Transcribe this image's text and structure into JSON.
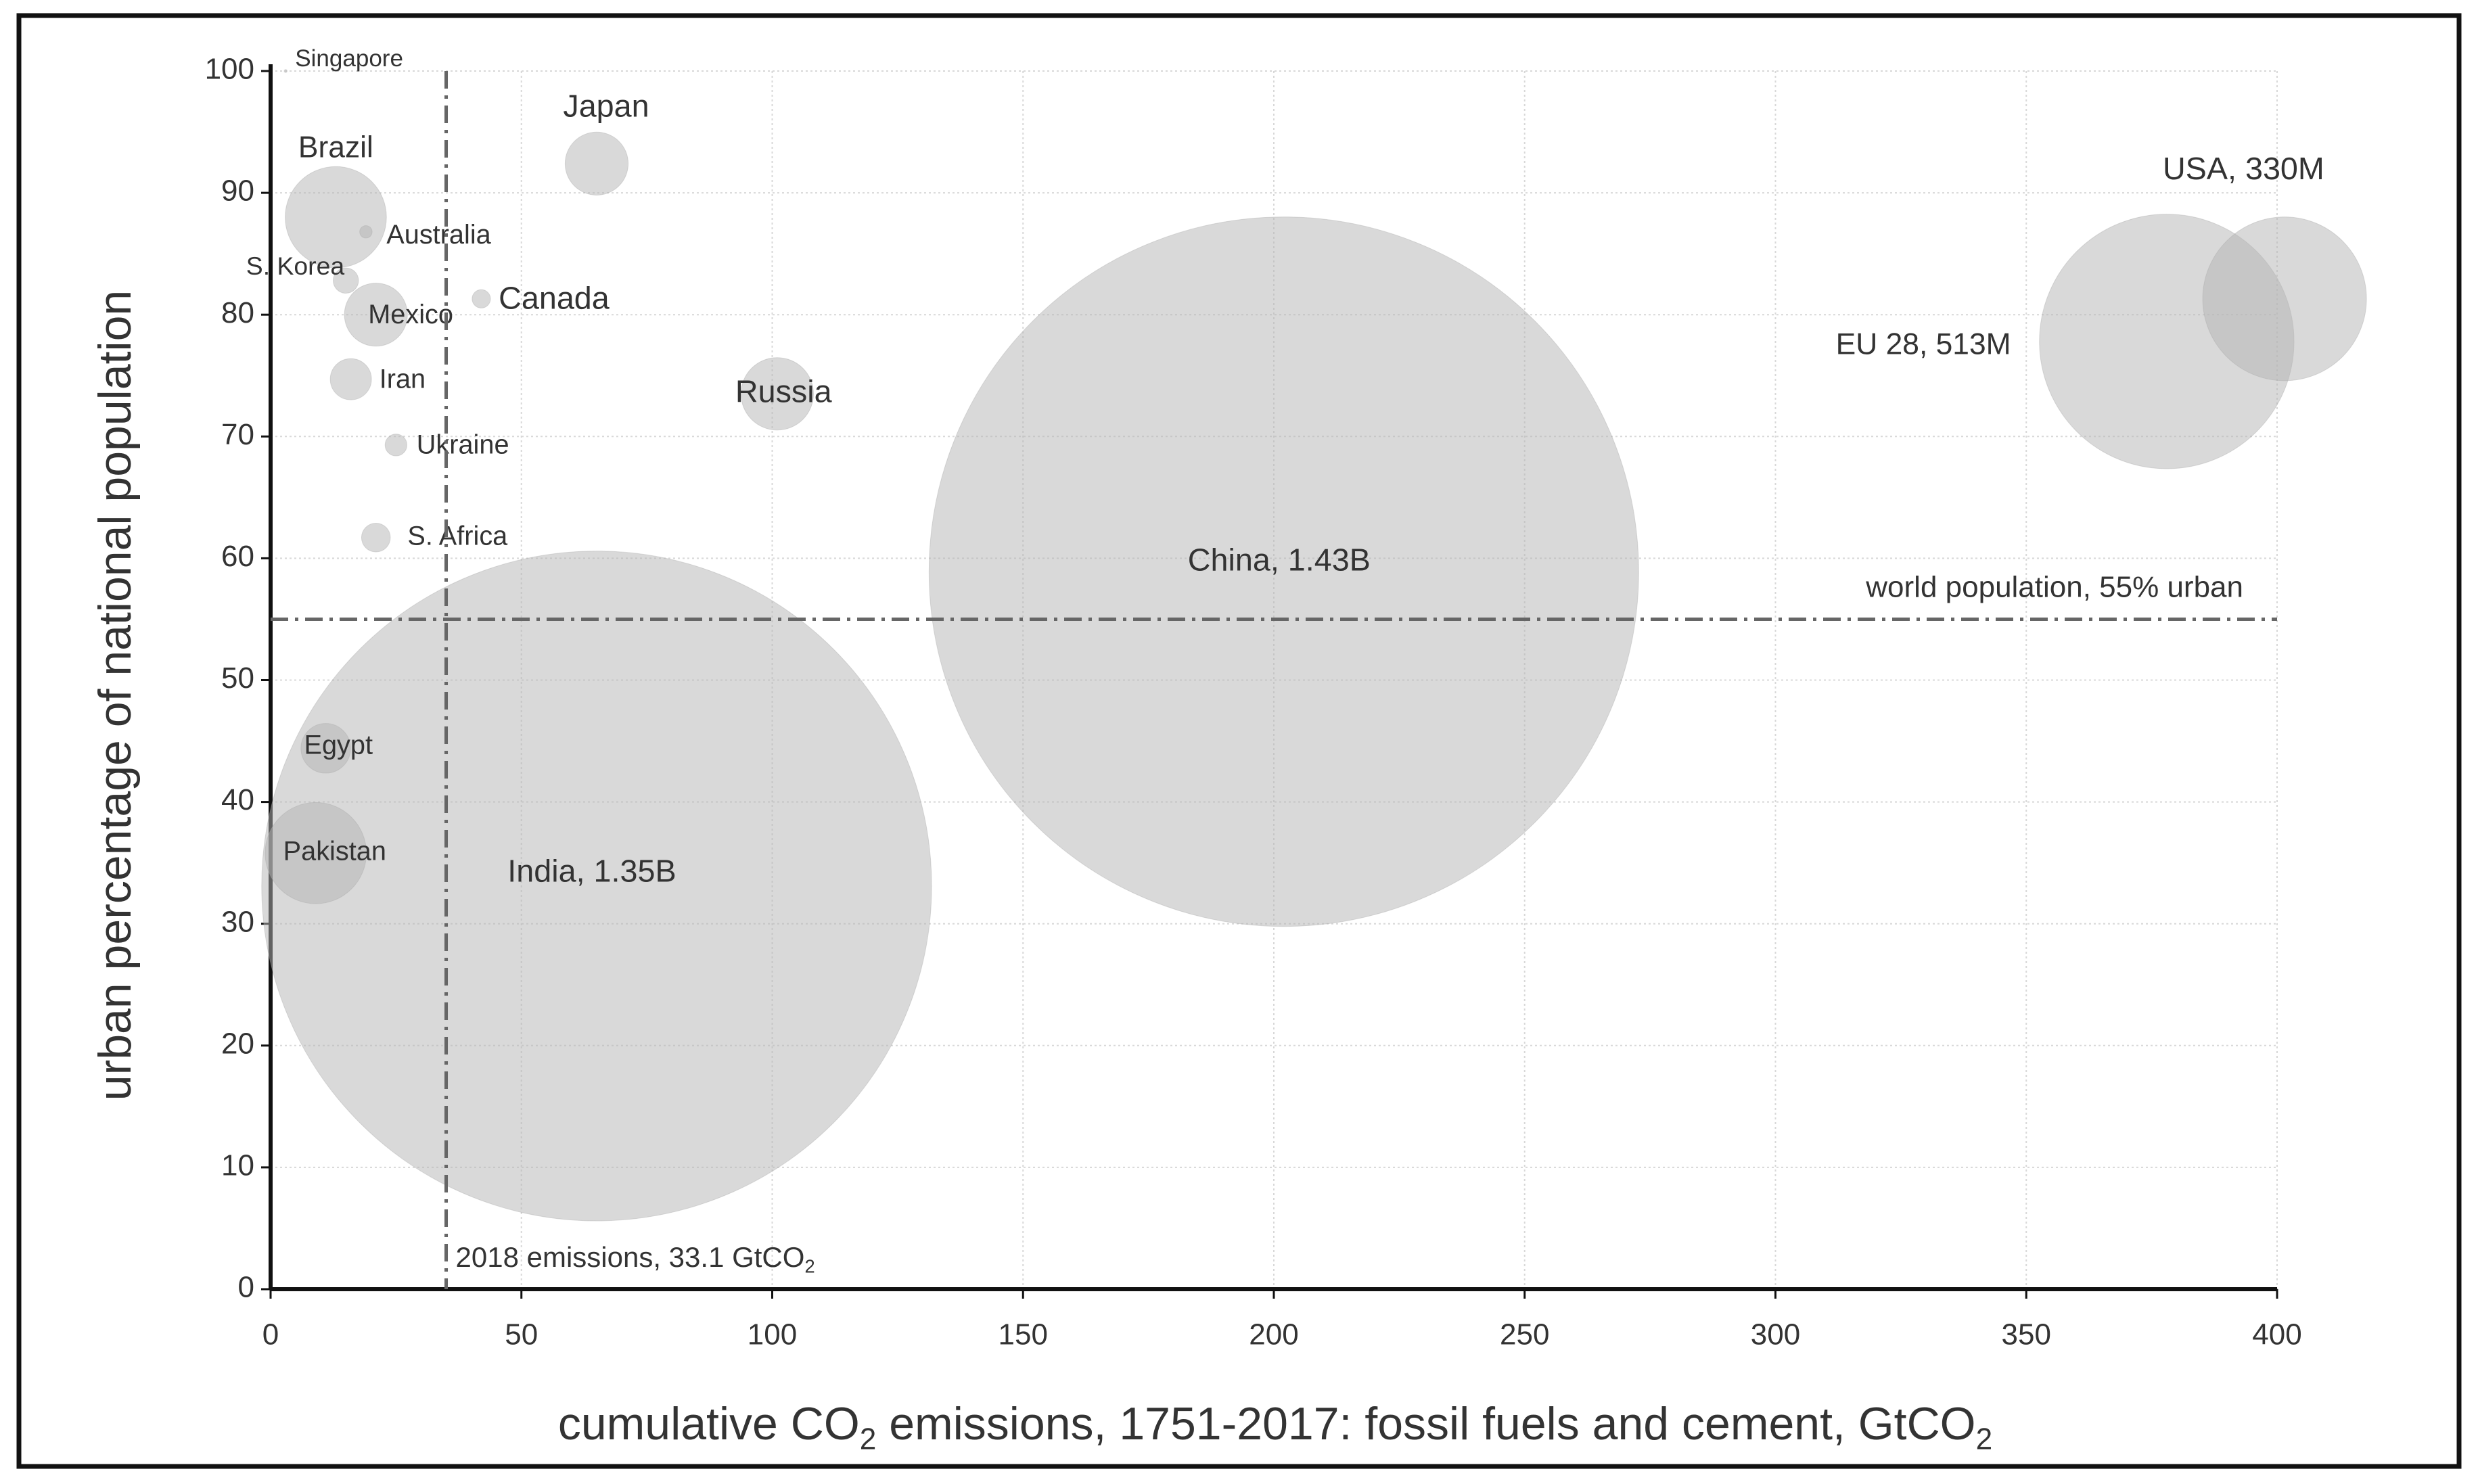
{
  "chart_data": {
    "type": "bubble",
    "xlabel": [
      "cumulative CO",
      "2",
      " emissions, 1751-2017: fossil fuels and cement, GtCO",
      "2"
    ],
    "ylabel": "urban percentage of national population",
    "xlim": [
      0,
      400
    ],
    "xticks": [
      0,
      50,
      100,
      150,
      200,
      250,
      300,
      350,
      400
    ],
    "ylim": [
      0,
      100
    ],
    "yticks": [
      0,
      10,
      20,
      30,
      40,
      50,
      60,
      70,
      80,
      90,
      100
    ],
    "grid": true,
    "color": "#b4b4b4",
    "points": [
      {
        "label": "Singapore",
        "x": 3,
        "y": 100,
        "size": 6
      },
      {
        "label": "Brazil",
        "x": 13,
        "y": 88,
        "size": 204
      },
      {
        "label": "Australia",
        "x": 19,
        "y": 86.8,
        "size": 25
      },
      {
        "label": "S. Korea",
        "x": 15,
        "y": 82.8,
        "size": 51
      },
      {
        "label": "Mexico",
        "x": 21,
        "y": 80,
        "size": 127
      },
      {
        "label": "Canada",
        "x": 42,
        "y": 81.3,
        "size": 37
      },
      {
        "label": "Iran",
        "x": 16,
        "y": 74.7,
        "size": 83
      },
      {
        "label": "Ukraine",
        "x": 25,
        "y": 69.3,
        "size": 44
      },
      {
        "label": "S. Africa",
        "x": 21,
        "y": 61.7,
        "size": 58
      },
      {
        "label": "Japan",
        "x": 65,
        "y": 92.4,
        "size": 127
      },
      {
        "label": "Russia",
        "x": 101,
        "y": 73.5,
        "size": 146
      },
      {
        "label": "China, 1.43B",
        "x": 202,
        "y": 58.9,
        "size": 1430
      },
      {
        "label": "India, 1.35B",
        "x": 65,
        "y": 33.1,
        "size": 1350
      },
      {
        "label": "Egypt",
        "x": 11,
        "y": 44.4,
        "size": 100
      },
      {
        "label": "Pakistan",
        "x": 9,
        "y": 35.8,
        "size": 204
      },
      {
        "label": "EU 28, 513M",
        "x": 378,
        "y": 77.8,
        "size": 513
      },
      {
        "label": "USA, 330M",
        "x": 401.5,
        "y": 81.3,
        "size": 330
      }
    ],
    "reference_lines": [
      {
        "x": 35,
        "label": [
          "2018 emissions, 33.1 GtCO",
          "2"
        ]
      },
      {
        "y": 55,
        "label": [
          "world population, 55% urban"
        ]
      }
    ]
  }
}
